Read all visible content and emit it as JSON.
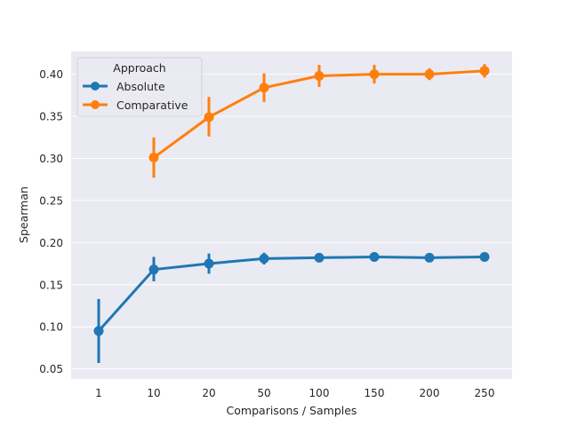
{
  "chart_data": {
    "type": "line",
    "title": "",
    "xlabel": "Comparisons / Samples",
    "ylabel": "Spearman",
    "categories": [
      "1",
      "10",
      "20",
      "50",
      "100",
      "150",
      "200",
      "250"
    ],
    "ylim": [
      0.038,
      0.427
    ],
    "yticks": [
      0.05,
      0.1,
      0.15,
      0.2,
      0.25,
      0.3,
      0.35,
      0.4
    ],
    "ytick_labels": [
      "0.05",
      "0.10",
      "0.15",
      "0.20",
      "0.25",
      "0.30",
      "0.35",
      "0.40"
    ],
    "grid": true,
    "legend": {
      "title": "Approach",
      "position": "top-left"
    },
    "series": [
      {
        "name": "Absolute",
        "color": "#1f77b4",
        "values": [
          0.095,
          0.168,
          0.175,
          0.181,
          0.182,
          0.183,
          0.182,
          0.183
        ],
        "err_low": [
          0.057,
          0.154,
          0.163,
          0.174,
          0.179,
          0.181,
          0.18,
          0.181
        ],
        "err_high": [
          0.133,
          0.183,
          0.187,
          0.188,
          0.185,
          0.185,
          0.184,
          0.185
        ]
      },
      {
        "name": "Comparative",
        "color": "#ff7f0e",
        "values": [
          null,
          0.301,
          0.349,
          0.384,
          0.398,
          0.4,
          0.4,
          0.404
        ],
        "err_low": [
          null,
          0.277,
          0.326,
          0.367,
          0.385,
          0.389,
          0.393,
          0.396
        ],
        "err_high": [
          null,
          0.325,
          0.373,
          0.401,
          0.411,
          0.411,
          0.407,
          0.412
        ]
      }
    ]
  }
}
